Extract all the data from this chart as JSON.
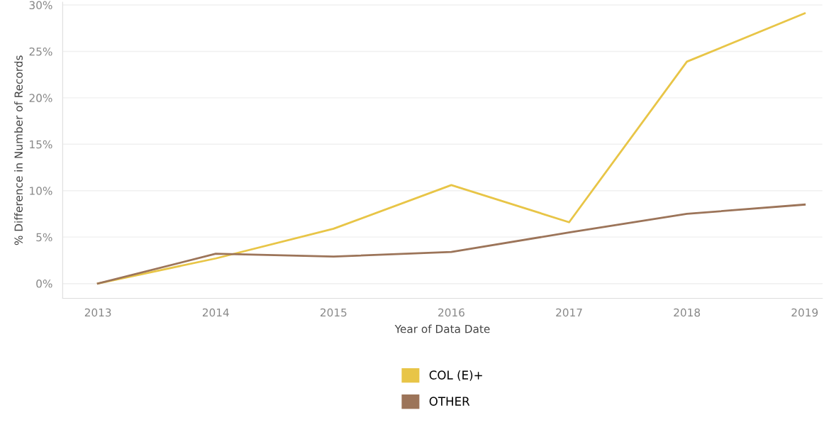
{
  "chart_data": {
    "type": "line",
    "xlabel": "Year of Data Date",
    "ylabel": "% Difference in Number of Records",
    "x": [
      2013,
      2014,
      2015,
      2016,
      2017,
      2018,
      2019
    ],
    "series": [
      {
        "name": "COL (E)+",
        "color": "#e8c547",
        "values": [
          0,
          2.7,
          5.9,
          10.6,
          6.6,
          23.9,
          29.1
        ]
      },
      {
        "name": "OTHER",
        "color": "#9c7459",
        "values": [
          0,
          3.2,
          2.9,
          3.4,
          5.5,
          7.5,
          8.5
        ]
      }
    ],
    "xlim": [
      2012.7,
      2019.15
    ],
    "xticks": [
      2013,
      2014,
      2015,
      2016,
      2017,
      2018,
      2019
    ],
    "ylim": [
      -1.6,
      30.3
    ],
    "yticks": [
      {
        "value": 0,
        "label": "0%"
      },
      {
        "value": 5,
        "label": "5%"
      },
      {
        "value": 10,
        "label": "10%"
      },
      {
        "value": 15,
        "label": "15%"
      },
      {
        "value": 20,
        "label": "20%"
      },
      {
        "value": 25,
        "label": "25%"
      },
      {
        "value": 30,
        "label": "30%"
      }
    ],
    "grid": "y",
    "legend": "bottom",
    "marker": "none",
    "line_style": "solid"
  }
}
